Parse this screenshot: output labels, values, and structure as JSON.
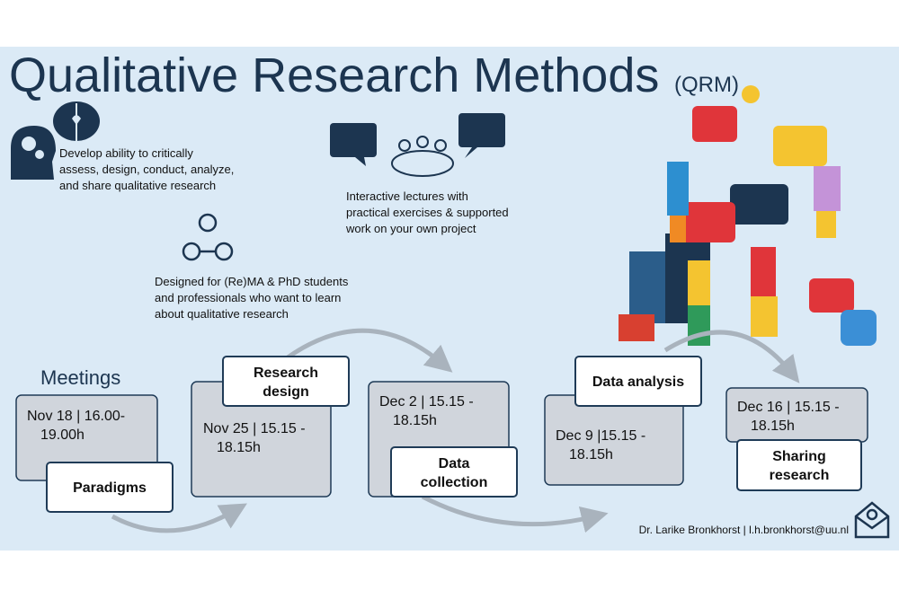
{
  "header": {
    "title": "Qualitative Research Methods",
    "abbreviation": "(QRM)"
  },
  "features": [
    {
      "lines": [
        "Develop ability to critically",
        "assess, design, conduct, analyze,",
        "and share qualitative research"
      ]
    },
    {
      "lines": [
        "Interactive lectures with",
        "practical exercises & supported",
        "work on your own project"
      ]
    },
    {
      "lines": [
        "Designed for (Re)MA & PhD students",
        "and professionals who want to learn",
        "about qualitative research"
      ]
    }
  ],
  "meetings": {
    "heading": "Meetings",
    "items": [
      {
        "date": [
          "Nov 18 | 16.00-",
          "19.00h"
        ],
        "label": [
          "Paradigms"
        ]
      },
      {
        "date": [
          "Nov 25 | 15.15 -",
          "18.15h"
        ],
        "label": [
          "Research",
          "design"
        ]
      },
      {
        "date": [
          "Dec 2 | 15.15 -",
          "18.15h"
        ],
        "label": [
          "Data",
          "collection"
        ]
      },
      {
        "date": [
          "Dec 9 |15.15 -",
          "18.15h"
        ],
        "label": [
          "Data analysis"
        ]
      },
      {
        "date": [
          "Dec 16 | 15.15 -",
          "18.15h"
        ],
        "label": [
          "Sharing",
          "research"
        ]
      }
    ]
  },
  "contact": "Dr. Larike Bronkhorst | l.h.bronkhorst@uu.nl"
}
